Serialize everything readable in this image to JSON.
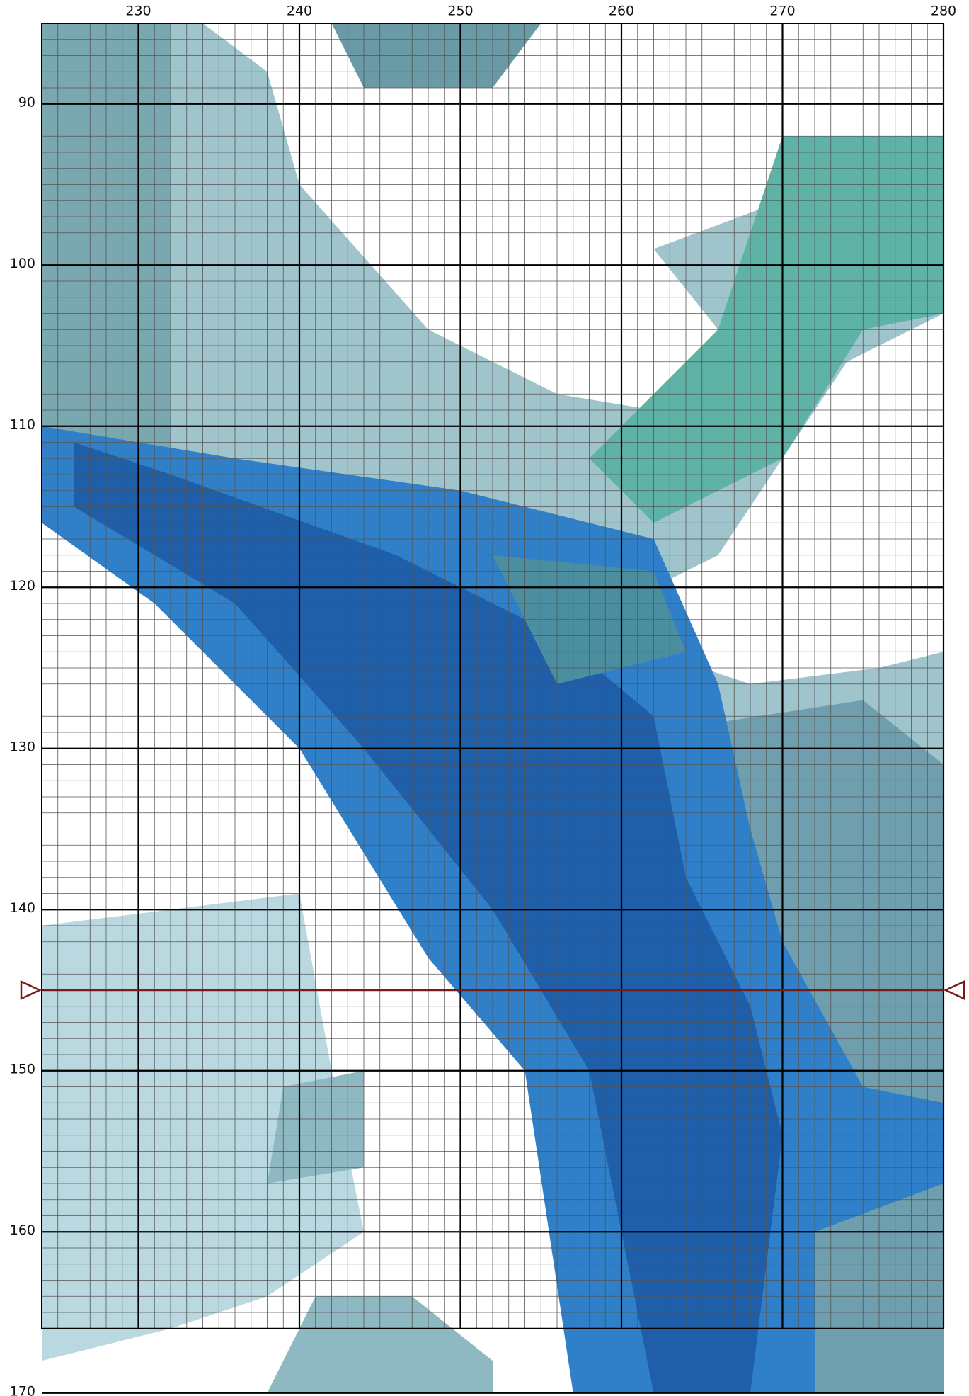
{
  "pattern": {
    "column_labels": [
      230,
      240,
      250,
      260,
      270,
      280
    ],
    "row_labels": [
      90,
      100,
      110,
      120,
      130,
      140,
      150,
      160,
      170
    ]
  }
}
